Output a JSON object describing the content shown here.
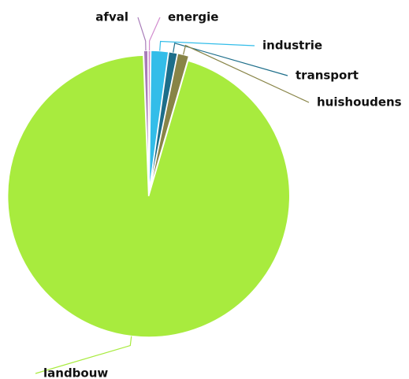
{
  "chart_data": {
    "type": "pie",
    "categories": [
      "afval",
      "energie",
      "industrie",
      "transport",
      "huishoudens",
      "landbouw"
    ],
    "values": [
      0.5,
      0.3,
      2.0,
      1.0,
      1.3,
      94.9
    ],
    "colors": [
      "#a77bb8",
      "#d28ccf",
      "#33bde9",
      "#1d6e8a",
      "#888447",
      "#a8eb3e"
    ]
  }
}
